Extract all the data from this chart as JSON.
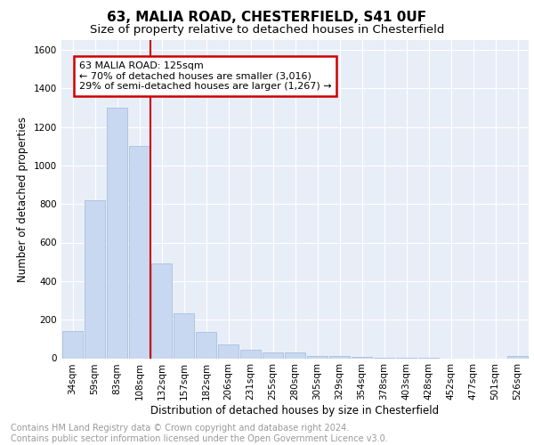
{
  "title": "63, MALIA ROAD, CHESTERFIELD, S41 0UF",
  "subtitle": "Size of property relative to detached houses in Chesterfield",
  "xlabel": "Distribution of detached houses by size in Chesterfield",
  "ylabel": "Number of detached properties",
  "categories": [
    "34sqm",
    "59sqm",
    "83sqm",
    "108sqm",
    "132sqm",
    "157sqm",
    "182sqm",
    "206sqm",
    "231sqm",
    "255sqm",
    "280sqm",
    "305sqm",
    "329sqm",
    "354sqm",
    "378sqm",
    "403sqm",
    "428sqm",
    "452sqm",
    "477sqm",
    "501sqm",
    "526sqm"
  ],
  "values": [
    140,
    820,
    1300,
    1100,
    490,
    235,
    135,
    70,
    45,
    30,
    28,
    12,
    10,
    8,
    3,
    3,
    2,
    0,
    0,
    0,
    10
  ],
  "bar_color": "#c8d8f0",
  "bar_edge_color": "#a0b8d8",
  "vline_x_index": 4,
  "vline_color": "#cc0000",
  "annotation_box_text": "63 MALIA ROAD: 125sqm\n← 70% of detached houses are smaller (3,016)\n29% of semi-detached houses are larger (1,267) →",
  "annotation_box_color": "#cc0000",
  "ylim": [
    0,
    1650
  ],
  "yticks": [
    0,
    200,
    400,
    600,
    800,
    1000,
    1200,
    1400,
    1600
  ],
  "footer_text": "Contains HM Land Registry data © Crown copyright and database right 2024.\nContains public sector information licensed under the Open Government Licence v3.0.",
  "background_color": "#e8eef8",
  "grid_color": "#ffffff",
  "title_fontsize": 11,
  "subtitle_fontsize": 9.5,
  "axis_label_fontsize": 8.5,
  "tick_fontsize": 7.5,
  "annotation_fontsize": 8,
  "footer_fontsize": 7
}
